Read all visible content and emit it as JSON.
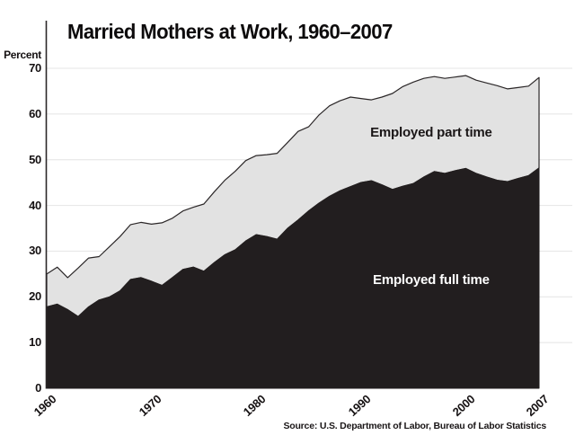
{
  "chart_data": {
    "type": "area",
    "stacked": true,
    "title": "Married Mothers at Work, 1960–2007",
    "ylabel": "Percent",
    "source": "Source: U.S. Department of Labor, Bureau of Labor Statistics",
    "xlim": [
      1960,
      2007
    ],
    "ylim": [
      0,
      70
    ],
    "grid": "horizontal gridlines, light gray, on",
    "legend_position": "labels inside areas",
    "x_ticks": [
      "1960",
      "1970",
      "1980",
      "1990",
      "2000",
      "2007"
    ],
    "y_ticks": [
      "0",
      "10",
      "20",
      "30",
      "40",
      "50",
      "60",
      "70"
    ],
    "years": [
      1960,
      1961,
      1962,
      1963,
      1964,
      1965,
      1966,
      1967,
      1968,
      1969,
      1970,
      1971,
      1972,
      1973,
      1974,
      1975,
      1976,
      1977,
      1978,
      1979,
      1980,
      1981,
      1982,
      1983,
      1984,
      1985,
      1986,
      1987,
      1988,
      1989,
      1990,
      1991,
      1992,
      1993,
      1994,
      1995,
      1996,
      1997,
      1998,
      1999,
      2000,
      2001,
      2002,
      2003,
      2004,
      2005,
      2006,
      2007
    ],
    "series": [
      {
        "name": "Employed full time",
        "color": "#221e1f",
        "values": [
          17.8,
          18.4,
          17.2,
          15.7,
          17.8,
          19.3,
          20.0,
          21.3,
          23.8,
          24.2,
          23.4,
          22.5,
          24.2,
          26.0,
          26.5,
          25.6,
          27.5,
          29.2,
          30.3,
          32.2,
          33.6,
          33.2,
          32.6,
          35.0,
          36.8,
          38.8,
          40.5,
          42.0,
          43.2,
          44.1,
          45.0,
          45.4,
          44.5,
          43.5,
          44.2,
          44.8,
          46.2,
          47.4,
          47.0,
          47.6,
          48.1,
          47.0,
          46.2,
          45.5,
          45.2,
          45.9,
          46.5,
          48.2
        ]
      },
      {
        "name": "Employed part time",
        "color": "#e2e2e2",
        "values": [
          7.2,
          8.1,
          7.0,
          10.6,
          10.7,
          9.5,
          11.0,
          11.9,
          12.0,
          12.1,
          12.5,
          13.7,
          13.0,
          12.8,
          13.1,
          14.7,
          15.5,
          16.3,
          17.2,
          17.6,
          17.3,
          17.9,
          18.8,
          18.8,
          19.4,
          18.4,
          19.3,
          19.8,
          19.7,
          19.6,
          18.4,
          17.7,
          19.2,
          21.0,
          21.8,
          22.2,
          21.6,
          20.8,
          20.8,
          20.5,
          20.3,
          20.4,
          20.6,
          20.7,
          20.3,
          19.9,
          19.6,
          19.8
        ]
      }
    ],
    "total_employed": [
      25.0,
      26.5,
      24.2,
      26.3,
      28.5,
      28.8,
      31.0,
      33.2,
      35.8,
      36.3,
      35.9,
      36.2,
      37.2,
      38.8,
      39.6,
      40.3,
      43.0,
      45.5,
      47.5,
      49.8,
      50.9,
      51.1,
      51.4,
      53.8,
      56.2,
      57.2,
      59.8,
      61.8,
      62.9,
      63.7,
      63.4,
      63.1,
      63.7,
      64.5,
      66.0,
      67.0,
      67.8,
      68.2,
      67.8,
      68.1,
      68.4,
      67.4,
      66.8,
      66.2,
      65.5,
      65.8,
      66.1,
      68.0
    ],
    "annotations": [
      {
        "text": "Employed part time",
        "x": 1996.7,
        "y": 55.8,
        "color": "#1a1617"
      },
      {
        "text": "Employed full time",
        "x": 1996.7,
        "y": 23.6,
        "color": "#ffffff"
      }
    ],
    "colors": {
      "grid": "#e4e4e4",
      "axis": "#2b2728",
      "outline": "#2b2728",
      "full_time_fill": "#221e1f",
      "part_time_fill": "#e2e2e2",
      "background": "#ffffff"
    }
  }
}
